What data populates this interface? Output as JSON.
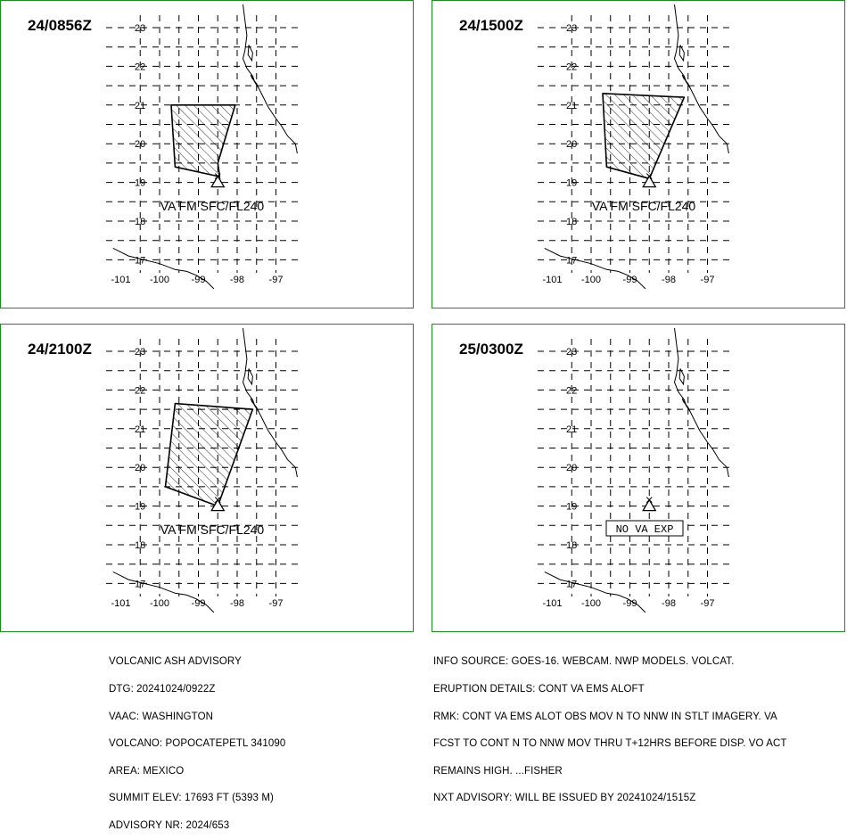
{
  "panels": [
    {
      "time": "24/0856Z",
      "label": "VA FM SFC/FL240",
      "cloud": [
        [
          -99.7,
          21.0
        ],
        [
          -98.05,
          21.0
        ],
        [
          -98.5,
          19.5
        ],
        [
          -98.45,
          19.15
        ],
        [
          -99.6,
          19.4
        ]
      ]
    },
    {
      "time": "24/1500Z",
      "label": "VA FM SFC/FL240",
      "cloud": [
        [
          -99.7,
          21.3
        ],
        [
          -97.6,
          21.2
        ],
        [
          -98.5,
          19.1
        ],
        [
          -99.6,
          19.4
        ]
      ]
    },
    {
      "time": "24/2100Z",
      "label": "VA FM SFC/FL240",
      "cloud": [
        [
          -99.6,
          21.65
        ],
        [
          -97.6,
          21.5
        ],
        [
          -98.5,
          19.0
        ],
        [
          -99.85,
          19.5
        ]
      ]
    },
    {
      "time": "25/0300Z",
      "label": "NO VA EXP",
      "cloud": null
    }
  ],
  "axes": {
    "lat_ticks": [
      "23",
      "22",
      "21",
      "20",
      "19",
      "18",
      "17"
    ],
    "lon_ticks": [
      "-101",
      "-100",
      "-99",
      "-98",
      "-97"
    ]
  },
  "volcano": {
    "lon": -98.5,
    "lat": 19.0
  },
  "advisory_left": [
    "VOLCANIC ASH ADVISORY",
    "DTG: 20241024/0922Z",
    "VAAC: WASHINGTON",
    "VOLCANO: POPOCATEPETL 341090",
    "AREA: MEXICO",
    "SUMMIT ELEV: 17693 FT (5393 M)",
    "ADVISORY NR: 2024/653"
  ],
  "advisory_right": [
    "INFO SOURCE: GOES-16. WEBCAM. NWP MODELS. VOLCAT.",
    "ERUPTION DETAILS: CONT VA EMS ALOFT",
    "RMK: CONT VA EMS ALOT OBS MOV N TO NNW IN STLT IMAGERY. VA",
    "FCST TO CONT N TO NNW MOV THRU T+12HRS BEFORE DISP. VO ACT",
    "REMAINS HIGH. ...FISHER",
    "NXT ADVISORY: WILL BE ISSUED BY 20241024/1515Z"
  ],
  "colors": {
    "border": "#1f8a1f",
    "lines": "#000000",
    "background": "#ffffff"
  }
}
